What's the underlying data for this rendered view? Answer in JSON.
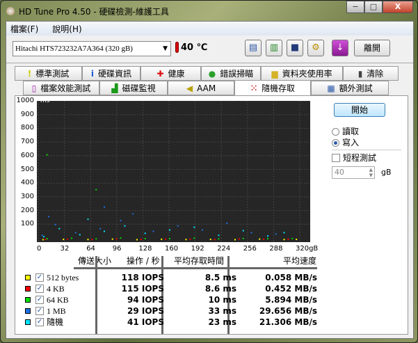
{
  "window": {
    "title": "HD Tune Pro 4.50 - 硬碟檢測-維護工具",
    "minimize": "−",
    "maximize": "□",
    "close": "X"
  },
  "menu": [
    {
      "label": "檔案(F)"
    },
    {
      "label": "說明(H)"
    }
  ],
  "toolbar": {
    "drive": "Hitachi HTS723232A7A364 (320 gB)",
    "temperature": "40 ℃",
    "exit": "離開",
    "buttons": [
      "copy-info-icon",
      "copy-screenshot-icon",
      "save-icon",
      "settings-icon",
      "download-icon"
    ]
  },
  "tabs_row1": [
    {
      "label": "標準測試",
      "icon": "exclamation-icon"
    },
    {
      "label": "硬碟資訊",
      "icon": "info-icon"
    },
    {
      "label": "健康",
      "icon": "health-cross-icon"
    },
    {
      "label": "錯誤掃瞄",
      "icon": "magnifier-icon"
    },
    {
      "label": "資料夾使用率",
      "icon": "folder-icon"
    },
    {
      "label": "清除",
      "icon": "trash-icon"
    }
  ],
  "tabs_row2": [
    {
      "label": "檔案效能測試",
      "icon": "file-icon"
    },
    {
      "label": "磁碟監視",
      "icon": "monitor-chart-icon"
    },
    {
      "label": "AAM",
      "icon": "speaker-icon"
    },
    {
      "label": "隨機存取",
      "icon": "random-access-icon",
      "active": true
    },
    {
      "label": "額外測試",
      "icon": "extra-test-icon"
    }
  ],
  "controls": {
    "start": "開始",
    "read": "讀取",
    "write": "寫入",
    "selected": "write",
    "short_test": "短程測試",
    "short_test_checked": false,
    "size_value": "40",
    "size_unit": "gB"
  },
  "chart_data": {
    "type": "scatter",
    "ylabel": "ms",
    "xlabel_unit": "gB",
    "ylim": [
      0,
      1000
    ],
    "xlim": [
      0,
      320
    ],
    "yticks": [
      "1000",
      "900",
      "800",
      "700",
      "600",
      "500",
      "400",
      "300",
      "200",
      "100"
    ],
    "xticks": [
      "0",
      "32",
      "64",
      "96",
      "128",
      "160",
      "192",
      "224",
      "256",
      "288",
      "320gB"
    ],
    "background": "#262626",
    "grid": true,
    "series": [
      {
        "name": "512 bytes",
        "color": "#ffff00",
        "points": [
          [
            5,
            8
          ],
          [
            30,
            10
          ],
          [
            60,
            9
          ],
          [
            90,
            12
          ],
          [
            120,
            8
          ],
          [
            150,
            11
          ],
          [
            180,
            9
          ],
          [
            210,
            10
          ],
          [
            240,
            8
          ],
          [
            270,
            12
          ],
          [
            300,
            9
          ],
          [
            315,
            10
          ]
        ]
      },
      {
        "name": "4 KB",
        "color": "#ff0000",
        "points": [
          [
            8,
            10
          ],
          [
            35,
            12
          ],
          [
            65,
            9
          ],
          [
            95,
            14
          ],
          [
            125,
            10
          ],
          [
            155,
            12
          ],
          [
            185,
            11
          ],
          [
            215,
            9
          ],
          [
            245,
            13
          ],
          [
            275,
            10
          ],
          [
            305,
            11
          ]
        ]
      },
      {
        "name": "64 KB",
        "color": "#00dd00",
        "points": [
          [
            10,
            15
          ],
          [
            40,
            18
          ],
          [
            70,
            14
          ],
          [
            100,
            20
          ],
          [
            130,
            16
          ],
          [
            160,
            15
          ],
          [
            190,
            19
          ],
          [
            220,
            14
          ],
          [
            250,
            17
          ],
          [
            280,
            15
          ],
          [
            310,
            16
          ],
          [
            10,
            640
          ],
          [
            70,
            380
          ]
        ]
      },
      {
        "name": "1 MB",
        "color": "#1e6fe0",
        "points": [
          [
            4,
            40
          ],
          [
            20,
            120
          ],
          [
            45,
            60
          ],
          [
            75,
            90
          ],
          [
            100,
            150
          ],
          [
            115,
            200
          ],
          [
            140,
            70
          ],
          [
            170,
            110
          ],
          [
            200,
            80
          ],
          [
            230,
            130
          ],
          [
            260,
            60
          ],
          [
            290,
            50
          ],
          [
            12,
            180
          ],
          [
            80,
            250
          ]
        ]
      },
      {
        "name": "隨機",
        "color": "#00e5ff",
        "points": [
          [
            6,
            30
          ],
          [
            25,
            90
          ],
          [
            50,
            45
          ],
          [
            80,
            70
          ],
          [
            105,
            110
          ],
          [
            130,
            55
          ],
          [
            160,
            80
          ],
          [
            190,
            100
          ],
          [
            220,
            40
          ],
          [
            250,
            75
          ],
          [
            280,
            35
          ],
          [
            300,
            60
          ],
          [
            60,
            160
          ]
        ]
      }
    ]
  },
  "results": {
    "headers": [
      "傳送大小",
      "操作 / 秒",
      "平均存取時間",
      "平均速度"
    ],
    "rows": [
      {
        "label": "512 bytes",
        "color": "#ffff00",
        "checked": true,
        "iops": "118 IOPS",
        "time": "8.5 ms",
        "speed": "0.058 MB/s"
      },
      {
        "label": "4 KB",
        "color": "#ff0000",
        "checked": true,
        "iops": "115 IOPS",
        "time": "8.6 ms",
        "speed": "0.452 MB/s"
      },
      {
        "label": "64 KB",
        "color": "#00dd00",
        "checked": true,
        "iops": "94 IOPS",
        "time": "10 ms",
        "speed": "5.894 MB/s"
      },
      {
        "label": "1 MB",
        "color": "#1e6fe0",
        "checked": true,
        "iops": "29 IOPS",
        "time": "33 ms",
        "speed": "29.656 MB/s"
      },
      {
        "label": "隨機",
        "color": "#00e5ff",
        "checked": true,
        "iops": "41 IOPS",
        "time": "23 ms",
        "speed": "21.306 MB/s"
      }
    ]
  }
}
